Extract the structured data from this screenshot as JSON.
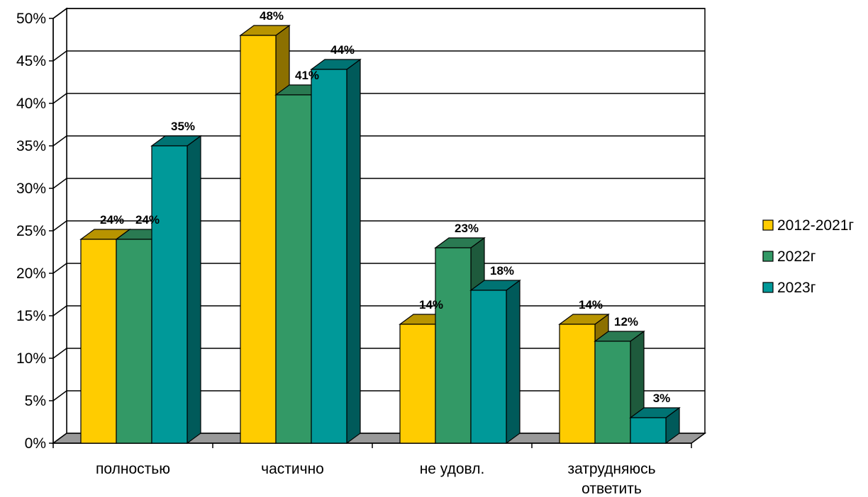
{
  "chart_data": {
    "type": "bar",
    "title": "",
    "xlabel": "",
    "ylabel": "",
    "ylim": [
      0,
      50
    ],
    "y_ticks": [
      "0%",
      "5%",
      "10%",
      "15%",
      "20%",
      "25%",
      "30%",
      "35%",
      "40%",
      "45%",
      "50%"
    ],
    "categories": [
      "полностью",
      "частично",
      "не удовл.",
      [
        "затрудняюсь",
        "ответить"
      ]
    ],
    "series": [
      {
        "name": "2012-2021г",
        "values": [
          24,
          48,
          14,
          14
        ],
        "labels": [
          "24%",
          "48%",
          "14%",
          "14%"
        ],
        "color": "#FFCC00",
        "top_color": "#B89400",
        "side_color": "#8C7000"
      },
      {
        "name": "2022г",
        "values": [
          24,
          41,
          23,
          12
        ],
        "labels": [
          "24%",
          "41%",
          "23%",
          "12%"
        ],
        "color": "#339966",
        "top_color": "#2A7A52",
        "side_color": "#1E5A3C"
      },
      {
        "name": "2023г",
        "values": [
          35,
          44,
          18,
          3
        ],
        "labels": [
          "35%",
          "44%",
          "18%",
          "3%"
        ],
        "color": "#009999",
        "top_color": "#007373",
        "side_color": "#005A5A"
      }
    ],
    "grid": true,
    "legend_position": "right",
    "style": "3d-clustered-column"
  }
}
